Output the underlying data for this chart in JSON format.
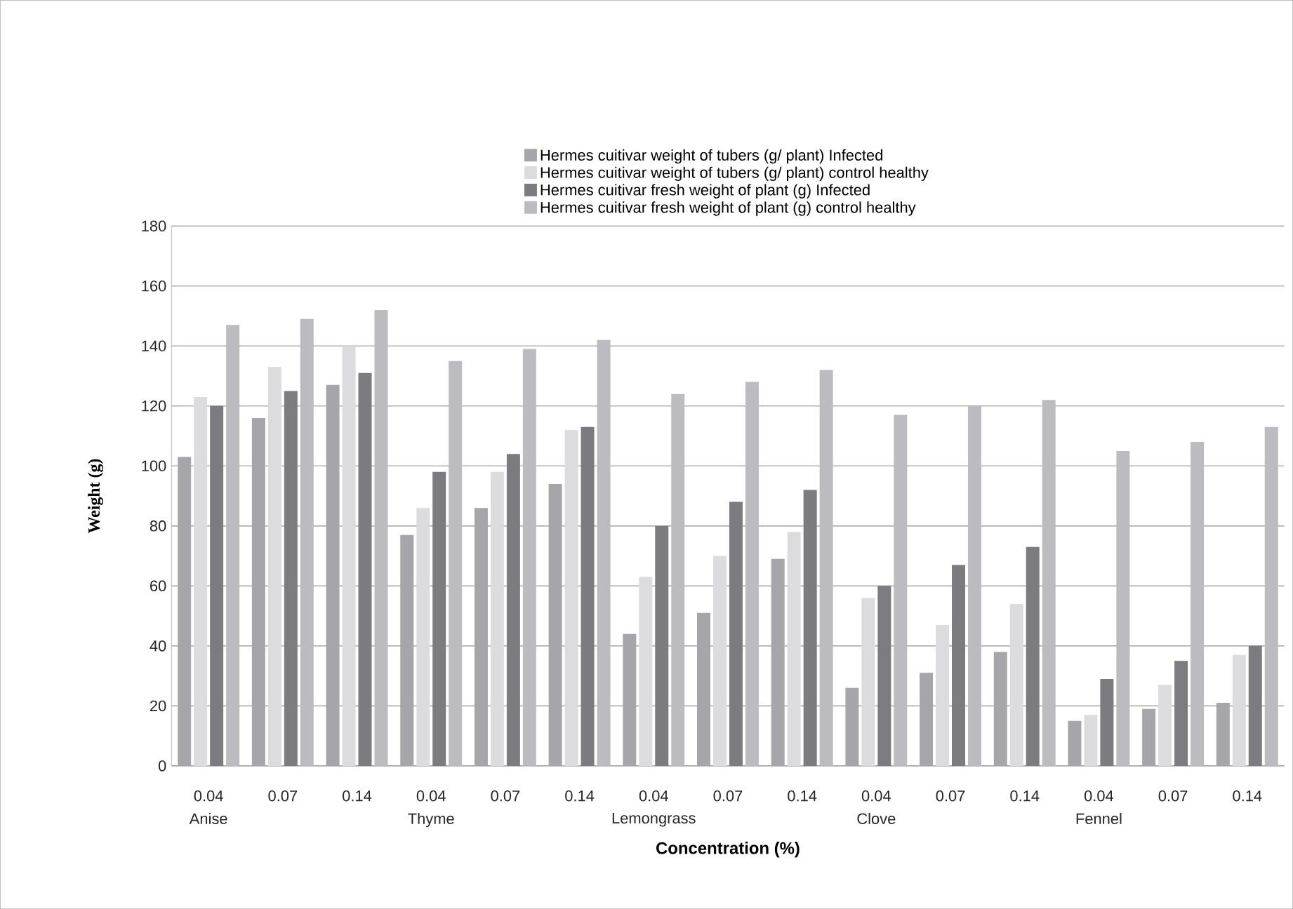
{
  "chart_data": {
    "type": "bar",
    "xlabel": "Concentration (%)",
    "ylabel": "Weight (g)",
    "categories": [
      "0.04",
      "0.07",
      "0.14",
      "0.04",
      "0.07",
      "0.14",
      "0.04",
      "0.07",
      "0.14",
      "0.04",
      "0.07",
      "0.14",
      "0.04",
      "0.07",
      "0.14"
    ],
    "annotations": [
      "Anise",
      "Thyme",
      "Lemongrass",
      "Clove",
      "Fennel"
    ],
    "series": [
      {
        "name": "Hermes cuitivar weight of tubers (g/ plant) Infected",
        "color": "#a6a6aa",
        "values": [
          103,
          116,
          127,
          77,
          86,
          94,
          44,
          51,
          69,
          26,
          31,
          38,
          15,
          19,
          21
        ]
      },
      {
        "name": "Hermes cuitivar weight of tubers (g/ plant) control healthy",
        "color": "#dcdcde",
        "values": [
          123,
          133,
          140,
          86,
          98,
          112,
          63,
          70,
          78,
          56,
          47,
          54,
          17,
          27,
          37
        ]
      },
      {
        "name": "Hermes cuitivar fresh weight of plant (g) Infected",
        "color": "#7c7c80",
        "values": [
          120,
          125,
          131,
          98,
          104,
          113,
          80,
          88,
          92,
          60,
          67,
          73,
          29,
          35,
          40
        ]
      },
      {
        "name": "Hermes cuitivar fresh weight of plant (g) control healthy",
        "color": "#bcbcc0",
        "values": [
          147,
          149,
          152,
          135,
          139,
          142,
          124,
          128,
          132,
          117,
          120,
          122,
          105,
          108,
          113
        ]
      }
    ],
    "ylim": [
      0,
      180
    ],
    "yticks": [
      0,
      20,
      40,
      60,
      80,
      100,
      120,
      140,
      160,
      180
    ],
    "grid": "y",
    "legend": "top"
  }
}
